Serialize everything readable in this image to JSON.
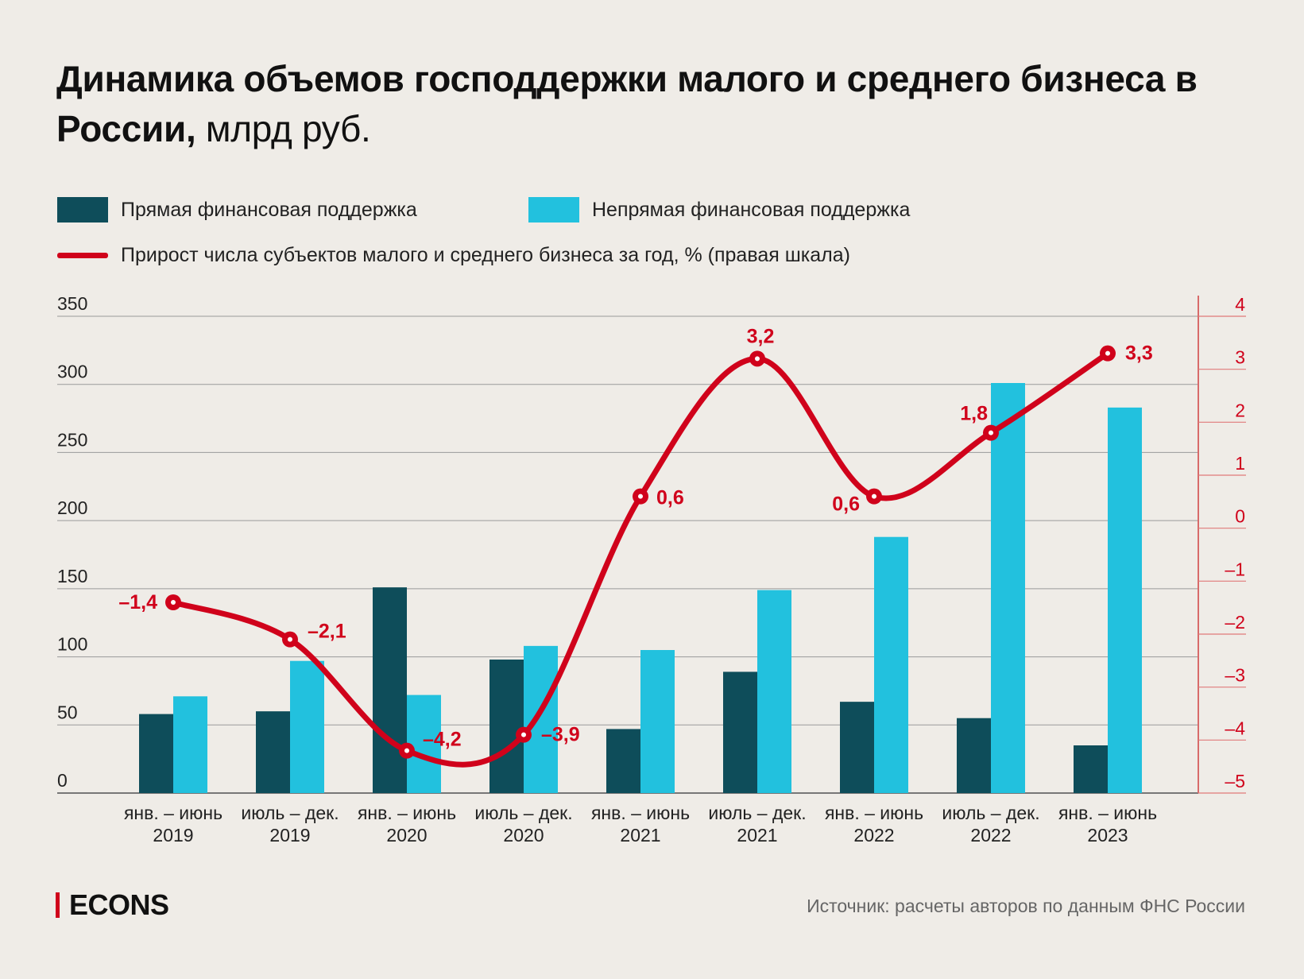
{
  "title": {
    "bold": "Динамика объемов господдержки малого и среднего бизнеса в России,",
    "unit": " млрд руб."
  },
  "legend": {
    "direct": "Прямая финансовая поддержка",
    "indirect": "Непрямая финансовая поддержка",
    "growth": "Прирост числа субъектов малого и среднего бизнеса за год, % (правая шкала)"
  },
  "colors": {
    "direct": "#0e4d5a",
    "indirect": "#22c1de",
    "growth": "#d0021b",
    "background": "#efece7"
  },
  "chart_data": {
    "type": "bar",
    "categories": [
      [
        "янв. – июнь",
        "2019"
      ],
      [
        "июль – дек.",
        "2019"
      ],
      [
        "янв. – июнь",
        "2020"
      ],
      [
        "июль – дек.",
        "2020"
      ],
      [
        "янв. – июнь",
        "2021"
      ],
      [
        "июль – дек.",
        "2021"
      ],
      [
        "янв. – июнь",
        "2022"
      ],
      [
        "июль – дек.",
        "2022"
      ],
      [
        "янв. – июнь",
        "2023"
      ]
    ],
    "series": [
      {
        "name": "Прямая финансовая поддержка",
        "type": "bar",
        "axis": "left",
        "values": [
          58,
          60,
          151,
          98,
          47,
          89,
          67,
          55,
          35
        ]
      },
      {
        "name": "Непрямая финансовая поддержка",
        "type": "bar",
        "axis": "left",
        "values": [
          71,
          97,
          72,
          108,
          105,
          149,
          188,
          301,
          283
        ]
      },
      {
        "name": "Прирост числа субъектов малого и среднего бизнеса за год, % (правая шкала)",
        "type": "line",
        "axis": "right",
        "values": [
          -1.4,
          -2.1,
          -4.2,
          -3.9,
          0.6,
          3.2,
          0.6,
          1.8,
          3.3
        ],
        "labels": [
          "–1,4",
          "–2,1",
          "–4,2",
          "–3,9",
          "0,6",
          "3,2",
          "0,6",
          "1,8",
          "3,3"
        ]
      }
    ],
    "left_axis": {
      "ylim": [
        0,
        350
      ],
      "ticks": [
        "0",
        "50",
        "100",
        "150",
        "200",
        "250",
        "300",
        "350"
      ]
    },
    "right_axis": {
      "ylim": [
        -5,
        4
      ],
      "ticks": [
        "–5",
        "–4",
        "–3",
        "–2",
        "–1",
        "0",
        "1",
        "2",
        "3",
        "4"
      ]
    },
    "grid": true,
    "legend_placement": "top-left"
  },
  "footer": {
    "logo": "ECONS",
    "source": "Источник: расчеты авторов по данным ФНС России"
  }
}
